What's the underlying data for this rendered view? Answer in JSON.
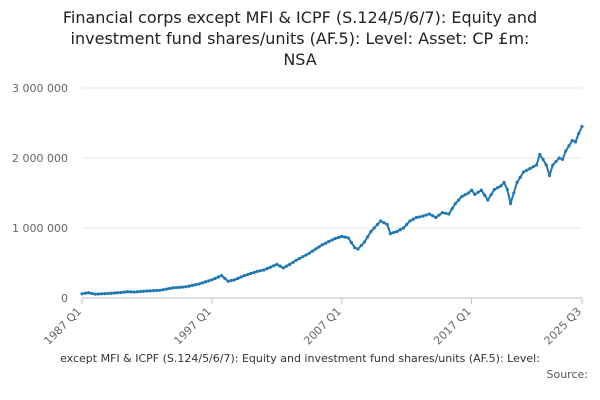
{
  "chart_data": {
    "type": "line",
    "title_lines": [
      "Financial corps except MFI & ICPF (S.124/5/6/7): Equity and",
      "investment fund shares/units (AF.5): Level: Asset: CP £m:",
      "NSA"
    ],
    "xlabel": "",
    "ylabel": "",
    "ylim": [
      0,
      3000000
    ],
    "y_ticks": [
      {
        "value": 0,
        "label": "0"
      },
      {
        "value": 1000000,
        "label": "1 000 000"
      },
      {
        "value": 2000000,
        "label": "2 000 000"
      },
      {
        "value": 3000000,
        "label": "3 000 000"
      }
    ],
    "x_ticks": [
      {
        "quarter_index": 0,
        "label": "1987 Q1"
      },
      {
        "quarter_index": 40,
        "label": "1997 Q1"
      },
      {
        "quarter_index": 80,
        "label": "2007 Q1"
      },
      {
        "quarter_index": 120,
        "label": "2017 Q1"
      },
      {
        "quarter_index": 154,
        "label": "2025 Q3"
      }
    ],
    "grid": true,
    "legend": "none",
    "series": [
      {
        "name": "Financial corps except MFI & ICPF (S.124/5/6/7): Equity and investment fund shares/units (AF.5): Level: Asset: CP £m: NSA",
        "color": "#1f77b4",
        "anchors": [
          [
            0,
            60000
          ],
          [
            2,
            75000
          ],
          [
            4,
            55000
          ],
          [
            8,
            65000
          ],
          [
            12,
            78000
          ],
          [
            14,
            90000
          ],
          [
            16,
            85000
          ],
          [
            20,
            100000
          ],
          [
            24,
            110000
          ],
          [
            28,
            145000
          ],
          [
            32,
            160000
          ],
          [
            36,
            200000
          ],
          [
            40,
            260000
          ],
          [
            42,
            300000
          ],
          [
            43,
            320000
          ],
          [
            45,
            240000
          ],
          [
            47,
            260000
          ],
          [
            50,
            320000
          ],
          [
            54,
            380000
          ],
          [
            56,
            400000
          ],
          [
            58,
            440000
          ],
          [
            60,
            480000
          ],
          [
            62,
            430000
          ],
          [
            64,
            480000
          ],
          [
            66,
            540000
          ],
          [
            70,
            640000
          ],
          [
            74,
            760000
          ],
          [
            78,
            850000
          ],
          [
            80,
            880000
          ],
          [
            82,
            860000
          ],
          [
            84,
            720000
          ],
          [
            85,
            700000
          ],
          [
            87,
            800000
          ],
          [
            89,
            950000
          ],
          [
            91,
            1050000
          ],
          [
            92,
            1100000
          ],
          [
            94,
            1050000
          ],
          [
            95,
            920000
          ],
          [
            97,
            950000
          ],
          [
            99,
            1000000
          ],
          [
            101,
            1100000
          ],
          [
            103,
            1150000
          ],
          [
            105,
            1170000
          ],
          [
            107,
            1200000
          ],
          [
            109,
            1150000
          ],
          [
            111,
            1220000
          ],
          [
            113,
            1200000
          ],
          [
            115,
            1350000
          ],
          [
            117,
            1450000
          ],
          [
            119,
            1500000
          ],
          [
            120,
            1540000
          ],
          [
            121,
            1480000
          ],
          [
            123,
            1540000
          ],
          [
            124,
            1470000
          ],
          [
            125,
            1400000
          ],
          [
            127,
            1550000
          ],
          [
            129,
            1600000
          ],
          [
            130,
            1650000
          ],
          [
            131,
            1550000
          ],
          [
            132,
            1350000
          ],
          [
            134,
            1650000
          ],
          [
            136,
            1800000
          ],
          [
            138,
            1850000
          ],
          [
            140,
            1900000
          ],
          [
            141,
            2050000
          ],
          [
            142,
            1980000
          ],
          [
            143,
            1900000
          ],
          [
            144,
            1750000
          ],
          [
            145,
            1900000
          ],
          [
            147,
            2000000
          ],
          [
            148,
            1980000
          ],
          [
            149,
            2100000
          ],
          [
            151,
            2250000
          ],
          [
            152,
            2230000
          ],
          [
            153,
            2350000
          ],
          [
            154,
            2450000
          ]
        ]
      }
    ]
  },
  "footer": {
    "series_text": "except MFI & ICPF (S.124/5/6/7): Equity and investment fund shares/units (AF.5): Level:",
    "source_label": "Source:"
  }
}
